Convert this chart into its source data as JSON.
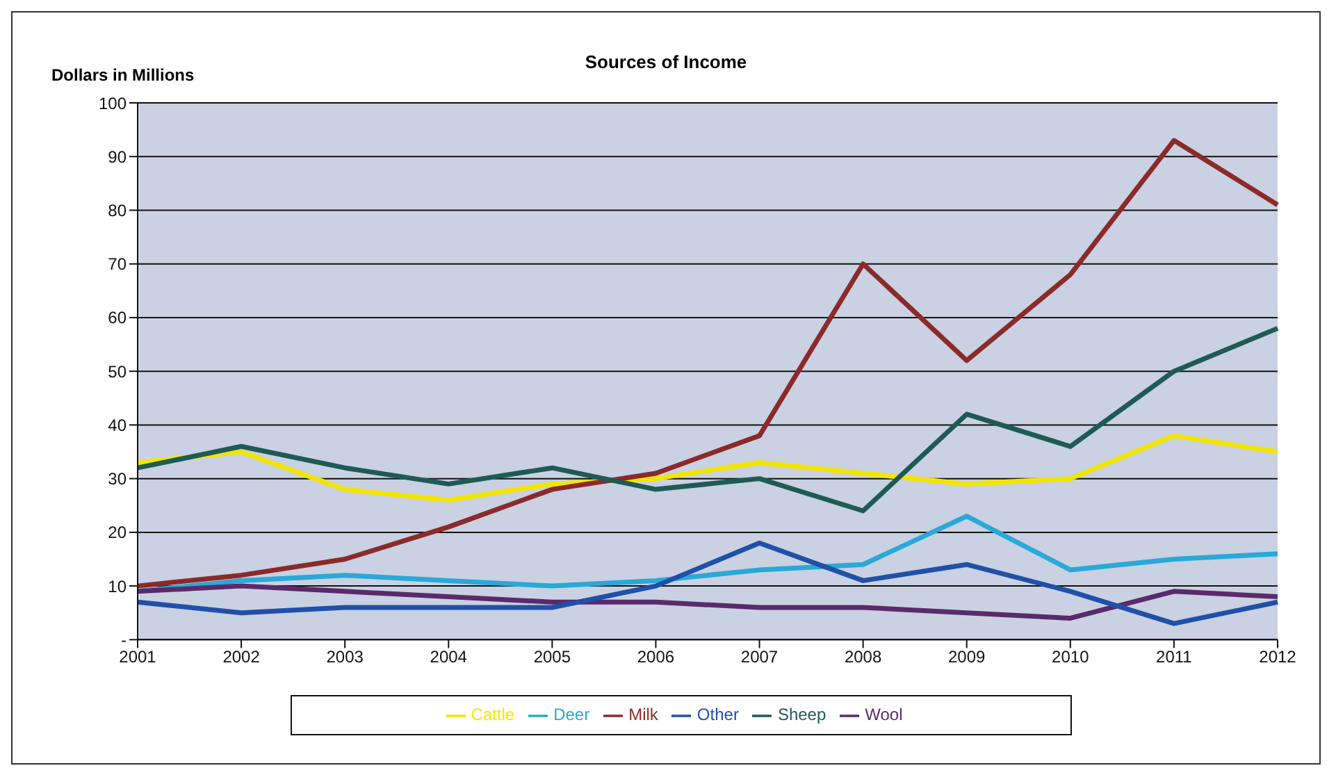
{
  "chart_data": {
    "type": "line",
    "title": "Sources of Income",
    "ylabel": "Dollars in Millions",
    "categories": [
      "2001",
      "2002",
      "2003",
      "2004",
      "2005",
      "2006",
      "2007",
      "2008",
      "2009",
      "2010",
      "2011",
      "2012"
    ],
    "series": [
      {
        "name": "Cattle",
        "color": "#f2e600",
        "values": [
          33,
          35,
          28,
          26,
          29,
          30,
          33,
          31,
          29,
          30,
          38,
          35
        ]
      },
      {
        "name": "Deer",
        "color": "#2aa8d8",
        "values": [
          9,
          11,
          12,
          11,
          10,
          11,
          13,
          14,
          23,
          13,
          15,
          16
        ]
      },
      {
        "name": "Wool",
        "color": "#5a2a6a",
        "values": [
          9,
          10,
          9,
          8,
          7,
          7,
          6,
          6,
          5,
          4,
          9,
          8
        ]
      },
      {
        "name": "Milk",
        "color": "#8b2a2a",
        "values": [
          10,
          12,
          15,
          21,
          28,
          31,
          38,
          70,
          52,
          68,
          93,
          81
        ]
      },
      {
        "name": "Sheep",
        "color": "#1f5a55",
        "values": [
          32,
          36,
          32,
          29,
          32,
          28,
          30,
          24,
          42,
          36,
          50,
          58
        ]
      },
      {
        "name": "Other",
        "color": "#2050a8",
        "values": [
          7,
          5,
          6,
          6,
          6,
          10,
          18,
          11,
          14,
          9,
          3,
          7
        ]
      }
    ],
    "ylim": [
      0,
      100
    ],
    "yticks": [
      {
        "value": 0,
        "label": "-"
      },
      10,
      20,
      30,
      40,
      50,
      60,
      70,
      80,
      90,
      100
    ],
    "grid": "y",
    "legend": "bottom",
    "marker": "none",
    "line_style": "solid"
  }
}
